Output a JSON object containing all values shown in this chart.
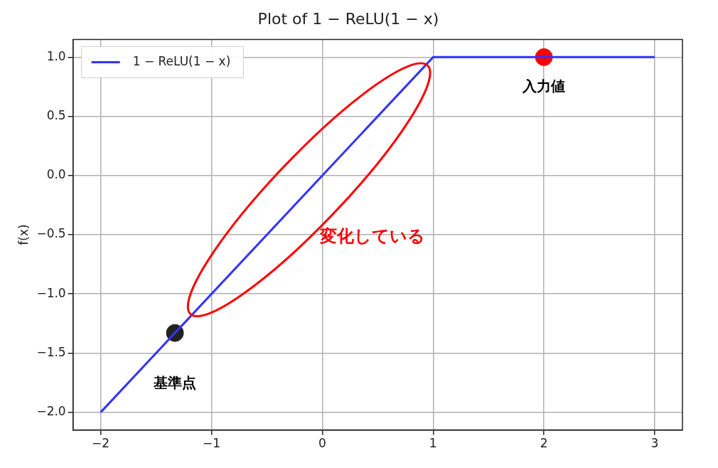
{
  "chart_data": {
    "type": "line",
    "title": "Plot of 1 − ReLU(1 − x)",
    "ylabel": "f(x)",
    "series": [
      {
        "name": "1 − ReLU(1 − x)",
        "color": "#3333ff",
        "marker": "none",
        "x": [
          -2,
          1,
          3
        ],
        "values": [
          -2,
          1,
          1
        ]
      },
      {
        "type": "scatter",
        "color": "#222222",
        "marker": "circle",
        "x": [
          -1.33
        ],
        "values": [
          -1.33
        ]
      },
      {
        "type": "scatter",
        "color": "#ff0000",
        "marker": "circle",
        "x": [
          2
        ],
        "values": [
          1
        ]
      }
    ],
    "xlim": [
      -2.25,
      3.25
    ],
    "ylim": [
      -2.15,
      1.15
    ],
    "xticks": [
      {
        "value": -2,
        "label": "−2"
      },
      {
        "value": -1,
        "label": "−1"
      },
      0,
      1,
      2,
      3
    ],
    "yticks": [
      {
        "value": -2,
        "label": "−2.0"
      },
      {
        "value": -1.5,
        "label": "−1.5"
      },
      {
        "value": -1,
        "label": "−1.0"
      },
      {
        "value": -0.5,
        "label": "−0.5"
      },
      {
        "value": 0,
        "label": "0.0"
      },
      {
        "value": 0.5,
        "label": "0.5"
      },
      {
        "value": 1,
        "label": "1.0"
      }
    ],
    "grid": true,
    "legend": "top left",
    "annotations": [
      {
        "text": "入力値",
        "x": 2,
        "y": 1
      },
      {
        "text": "基準点",
        "x": -1.33,
        "y": -1.33
      },
      "変化している"
    ]
  }
}
